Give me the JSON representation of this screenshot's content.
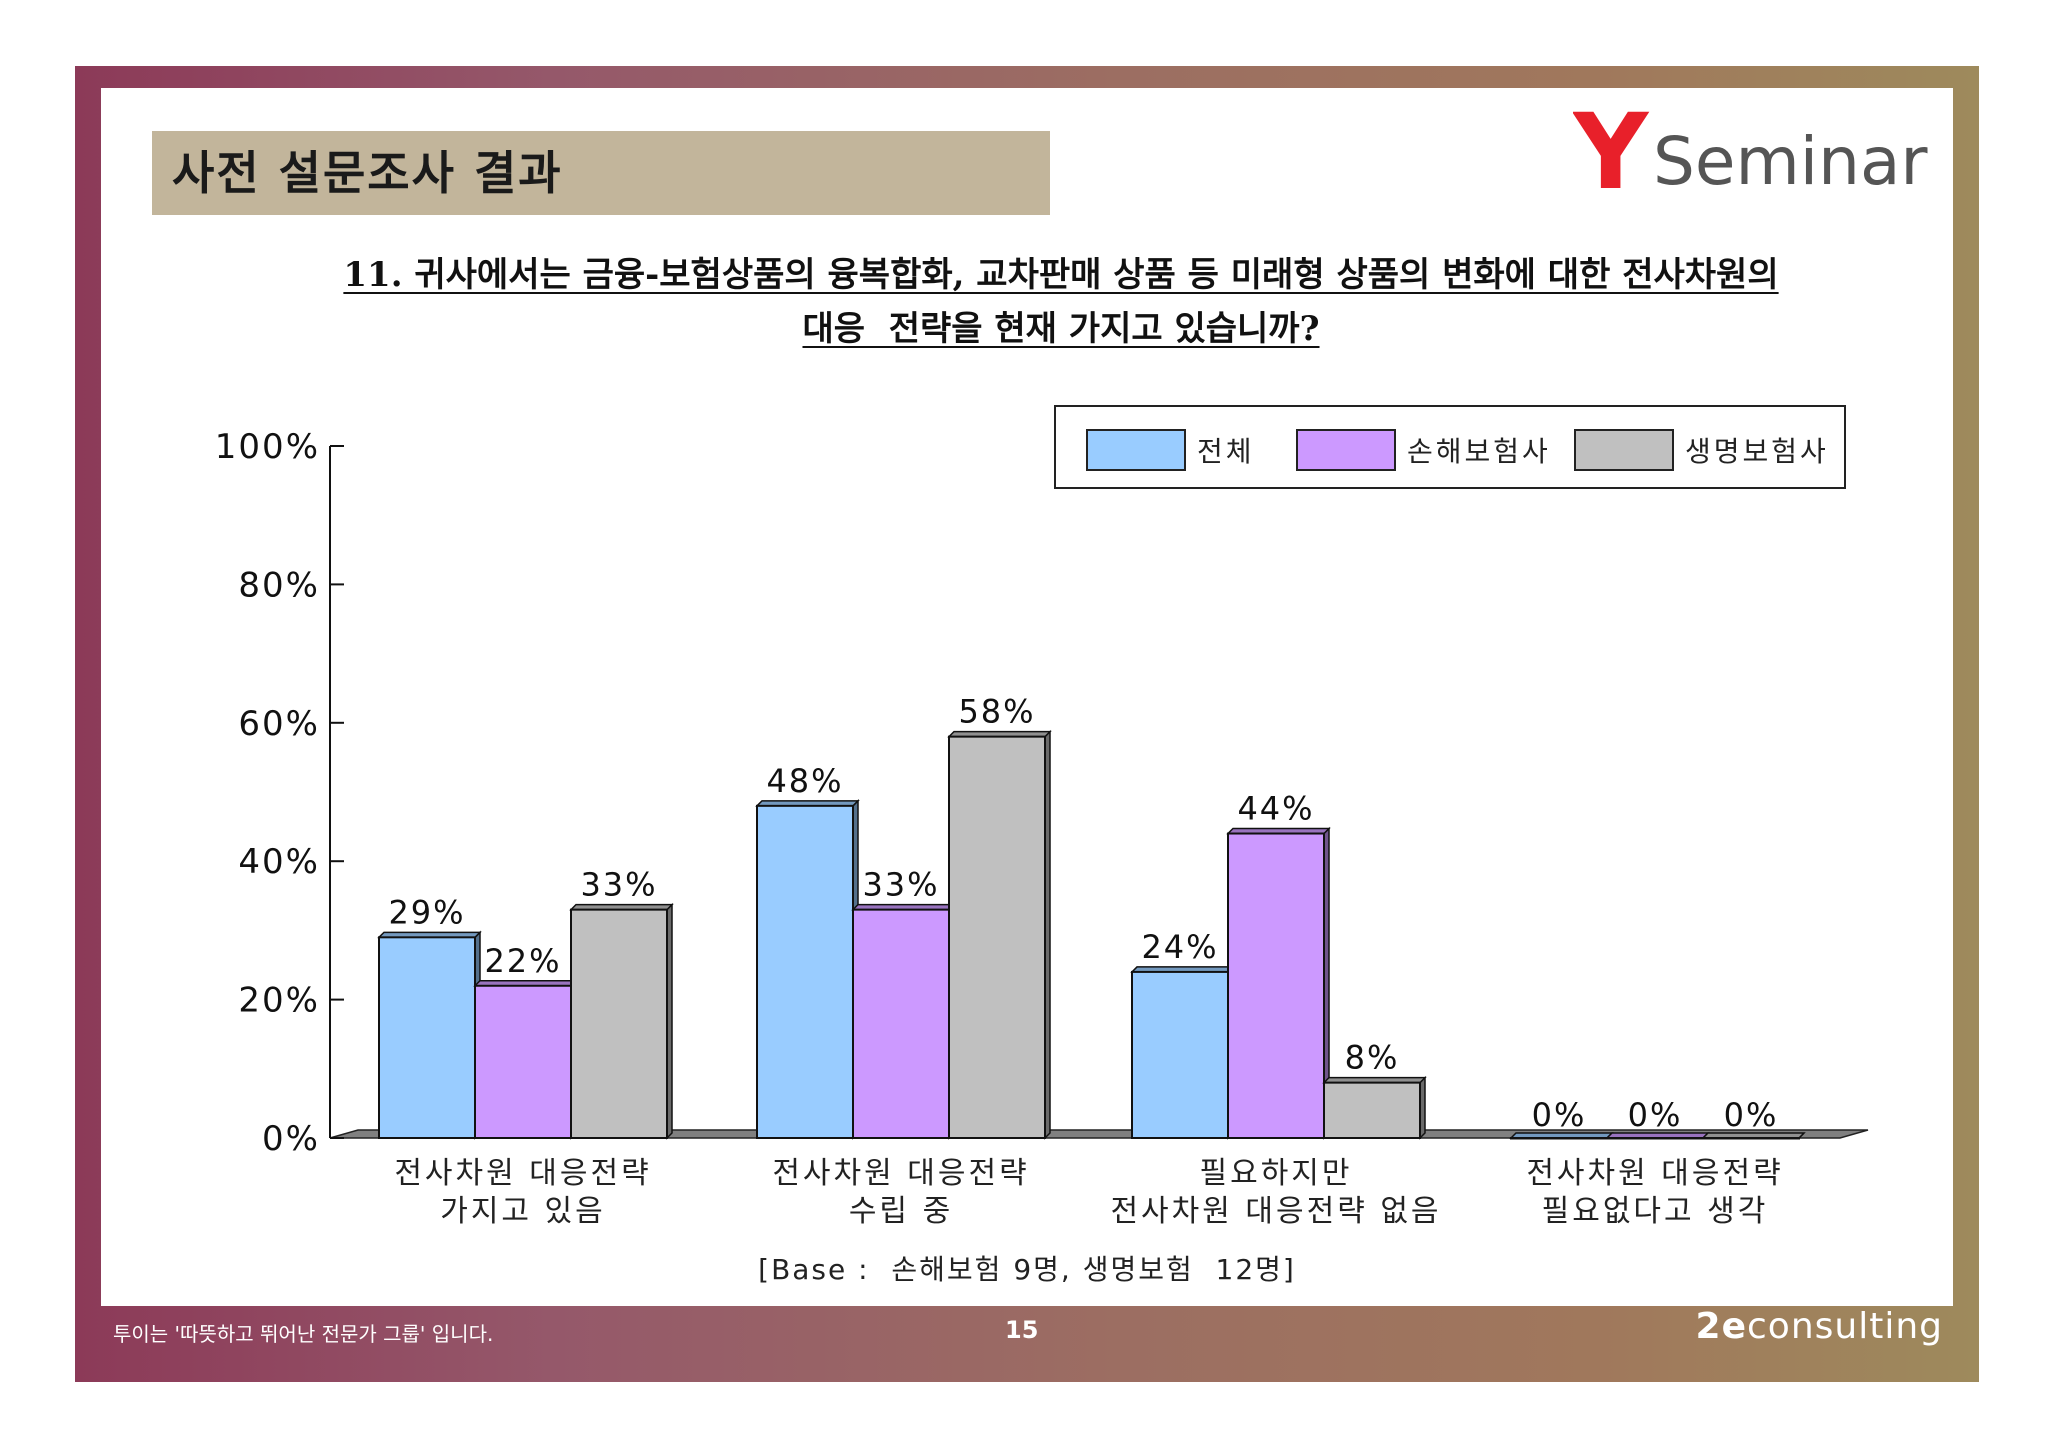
{
  "page": {
    "title": "사전 설문조사 결과",
    "question_line1": "11. 귀사에서는 금융-보험상품의 융복합화, 교차판매 상품 등 미래형 상품의 변화에 대한 전사차원의",
    "question_line2": "대응  전략을 현재 가지고 있습니까?",
    "base_note": "[Base :  손해보험 9명, 생명보험  12명]"
  },
  "logo": {
    "y": "Y",
    "text": "Seminar",
    "y_color": "#e8202a",
    "text_color": "#555555"
  },
  "footer": {
    "tagline": "투이는 '따뜻하고 뛰어난 전문가 그룹' 입니다.",
    "page_number": "15",
    "brand_mark": "2e",
    "brand_text": "consulting"
  },
  "colors": {
    "frame_start": "#8c3a58",
    "frame_end": "#9e8a5c",
    "title_bar": "#c2b59b"
  },
  "chart_data": {
    "type": "bar",
    "title": "",
    "xlabel": "",
    "ylabel": "",
    "ylim": [
      0,
      100
    ],
    "yticks": [
      "0%",
      "20%",
      "40%",
      "60%",
      "80%",
      "100%"
    ],
    "grid": false,
    "legend_position": "top-right",
    "categories": [
      [
        "전사차원 대응전략",
        "가지고 있음"
      ],
      [
        "전사차원 대응전략",
        "수립 중"
      ],
      [
        "필요하지만",
        "전사차원 대응전략 없음"
      ],
      [
        "전사차원 대응전략",
        "필요없다고 생각"
      ]
    ],
    "series": [
      {
        "name": "전체",
        "color": "#99ccff",
        "values": [
          29,
          48,
          24,
          0
        ],
        "labels": [
          "29%",
          "48%",
          "24%",
          "0%"
        ]
      },
      {
        "name": "손해보험사",
        "color": "#cc99ff",
        "values": [
          22,
          33,
          44,
          0
        ],
        "labels": [
          "22%",
          "33%",
          "44%",
          "0%"
        ]
      },
      {
        "name": "생명보험사",
        "color": "#c0c0c0",
        "values": [
          33,
          58,
          8,
          0
        ],
        "labels": [
          "33%",
          "58%",
          "8%",
          "0%"
        ]
      }
    ]
  }
}
